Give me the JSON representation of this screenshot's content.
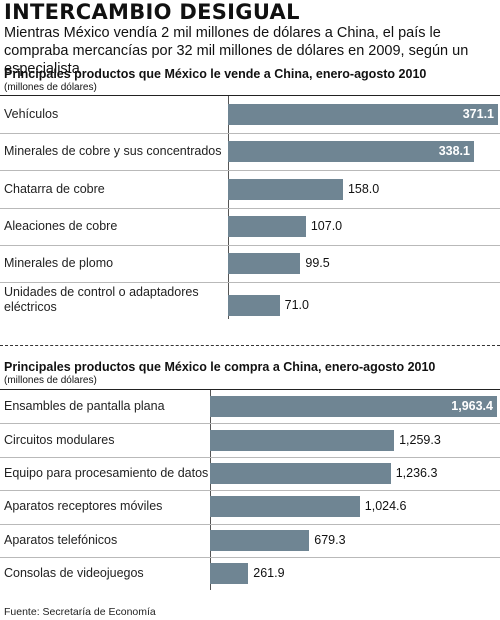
{
  "title": "INTERCAMBIO DESIGUAL",
  "subtitle": "Mientras México vendía 2 mil millones de dólares a China, el país le compraba mercancías por 32 mil millones de dólares en 2009, según un especialista",
  "source": "Fuente: Secretaría de Economía",
  "colors": {
    "bar": "#6f8593",
    "text": "#111111"
  },
  "chart_data": [
    {
      "type": "bar",
      "orientation": "horizontal",
      "title": "Principales productos que México le vende a China,  enero-agosto 2010",
      "unit": "(millones de dólares)",
      "categories": [
        "Vehículos",
        "Minerales de cobre y sus concentrados",
        "Chatarra de cobre",
        "Aleaciones de cobre",
        "Minerales de plomo",
        "Unidades de control o adaptadores eléctricos"
      ],
      "values": [
        371.1,
        338.1,
        158.0,
        107.0,
        99.5,
        71.0
      ],
      "labels": [
        "371.1",
        "338.1",
        "158.0",
        "107.0",
        "99.5",
        "71.0"
      ]
    },
    {
      "type": "bar",
      "orientation": "horizontal",
      "title": "Principales productos que México le compra a China,  enero-agosto 2010",
      "unit": "(millones de dólares)",
      "categories": [
        "Ensambles de pantalla plana",
        "Circuitos modulares",
        "Equipo para procesamiento de datos",
        "Aparatos receptores móviles",
        "Aparatos telefónicos",
        "Consolas de videojuegos"
      ],
      "values": [
        1963.4,
        1259.3,
        1236.3,
        1024.6,
        679.3,
        261.9
      ],
      "labels": [
        "1,963.4",
        "1,259.3",
        "1,236.3",
        "1,024.6",
        "679.3",
        "261.9"
      ]
    }
  ]
}
